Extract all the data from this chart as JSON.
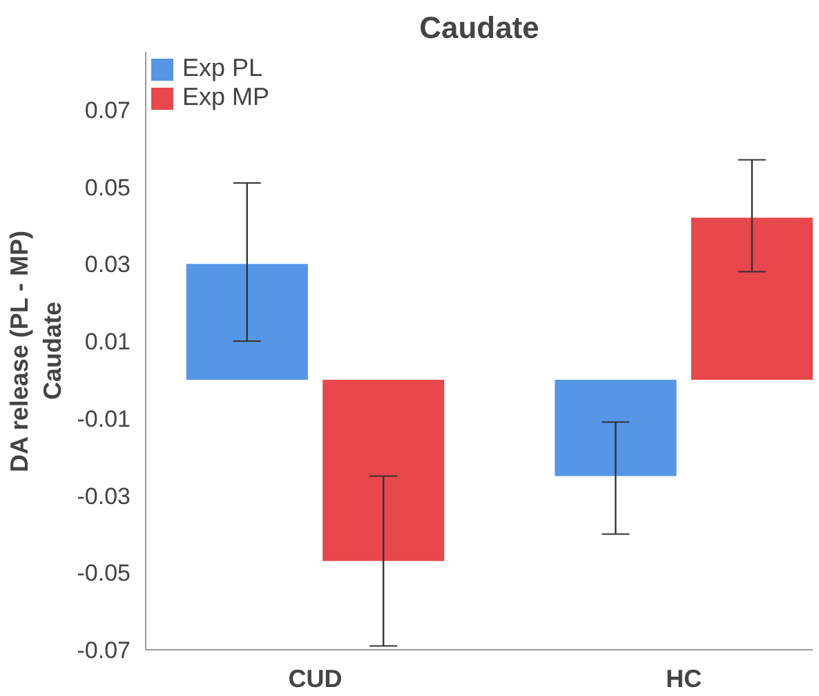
{
  "chart_data": {
    "type": "bar",
    "title": "Caudate",
    "ylabel": "DA release (PL - MP)\nCaudate",
    "categories": [
      "CUD",
      "HC"
    ],
    "series": [
      {
        "name": "Exp PL",
        "color": "#5596e6",
        "values": [
          0.03,
          -0.025
        ],
        "errors": [
          [
            0.01,
            0.051
          ],
          [
            -0.04,
            -0.011
          ]
        ]
      },
      {
        "name": "Exp MP",
        "color": "#e8474c",
        "values": [
          -0.047,
          0.042
        ],
        "errors": [
          [
            -0.069,
            -0.025
          ],
          [
            0.028,
            0.057
          ]
        ]
      }
    ],
    "ylim": [
      -0.07,
      0.085
    ],
    "yticks": [
      0.07,
      0.05,
      0.03,
      0.01,
      -0.01,
      -0.03,
      -0.05,
      -0.07
    ],
    "grid": false,
    "legend": "top left"
  }
}
